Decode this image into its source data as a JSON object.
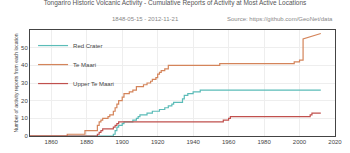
{
  "chart_data": {
    "type": "line",
    "title": "Tongariro Historic Volcanic Activity - Cumulative Reports of Activity at Most Active Locations",
    "subtitle": "1848-05-15 - 2012-11-21",
    "annotations": [
      "Source: https://github.com/GeoNet/data"
    ],
    "ylabel": "Number of activity reports from each location",
    "xlim": [
      1848,
      2020
    ],
    "ylim": [
      0,
      60
    ],
    "xticks": [
      1860,
      1880,
      1900,
      1920,
      1940,
      1960,
      1980,
      2000,
      2020
    ],
    "yticks": [
      0,
      10,
      20,
      30,
      40,
      50
    ],
    "grid": true,
    "legend": "upper left",
    "series": [
      {
        "name": "Red Crater",
        "color": "#5bbcb8",
        "x": [
          1848,
          1895,
          1895,
          1896,
          1896,
          1897,
          1897,
          1898,
          1898,
          1900,
          1900,
          1901,
          1901,
          1906,
          1906,
          1908,
          1908,
          1909,
          1909,
          1910,
          1910,
          1914,
          1914,
          1917,
          1917,
          1921,
          1921,
          1924,
          1924,
          1926,
          1926,
          1928,
          1928,
          1929,
          1929,
          1934,
          1934,
          1935,
          1935,
          1937,
          1937,
          1940,
          1940,
          1944,
          1944,
          1947,
          2012
        ],
        "values": [
          0,
          0,
          1,
          1,
          3,
          3,
          5,
          5,
          6,
          6,
          7,
          7,
          8,
          8,
          9,
          9,
          10,
          10,
          11,
          11,
          12,
          12,
          13,
          13,
          14,
          14,
          15,
          15,
          16,
          16,
          17,
          17,
          18,
          18,
          19,
          19,
          21,
          21,
          23,
          23,
          24,
          24,
          25,
          25,
          26,
          26,
          26
        ]
      },
      {
        "name": "Te Maari",
        "color": "#d4845a",
        "x": [
          1848,
          1869,
          1869,
          1879,
          1879,
          1886,
          1886,
          1887,
          1887,
          1888,
          1888,
          1889,
          1889,
          1892,
          1892,
          1893,
          1893,
          1895,
          1895,
          1896,
          1896,
          1897,
          1897,
          1898,
          1898,
          1900,
          1900,
          1901,
          1901,
          1904,
          1904,
          1906,
          1906,
          1908,
          1908,
          1912,
          1912,
          1914,
          1914,
          1916,
          1916,
          1917,
          1917,
          1919,
          1919,
          1920,
          1920,
          1921,
          1921,
          1922,
          1922,
          1924,
          1924,
          1926,
          1926,
          1955,
          1955,
          1997,
          1997,
          2000,
          2000,
          2002,
          2002,
          2012
        ],
        "values": [
          0,
          0,
          1,
          1,
          3,
          3,
          6,
          6,
          8,
          8,
          9,
          9,
          10,
          10,
          11,
          11,
          12,
          12,
          14,
          14,
          16,
          16,
          18,
          18,
          20,
          20,
          22,
          22,
          24,
          24,
          25,
          25,
          26,
          26,
          28,
          28,
          29,
          29,
          30,
          30,
          31,
          31,
          32,
          32,
          33,
          33,
          35,
          35,
          36,
          36,
          37,
          37,
          38,
          38,
          40,
          40,
          41,
          41,
          42,
          42,
          43,
          43,
          55,
          58
        ]
      },
      {
        "name": "Upper Te Maari",
        "color": "#c0504d",
        "x": [
          1848,
          1886,
          1886,
          1887,
          1887,
          1888,
          1888,
          1889,
          1889,
          1895,
          1895,
          1896,
          1896,
          1897,
          1897,
          1898,
          1898,
          1957,
          1957,
          1960,
          1960,
          1961,
          1961,
          2006,
          2006,
          2007,
          2007,
          2012
        ],
        "values": [
          0,
          0,
          1,
          1,
          2,
          2,
          3,
          3,
          4,
          4,
          5,
          5,
          6,
          6,
          7,
          7,
          8,
          8,
          9,
          9,
          10,
          10,
          11,
          11,
          12,
          12,
          13,
          13
        ]
      }
    ]
  }
}
